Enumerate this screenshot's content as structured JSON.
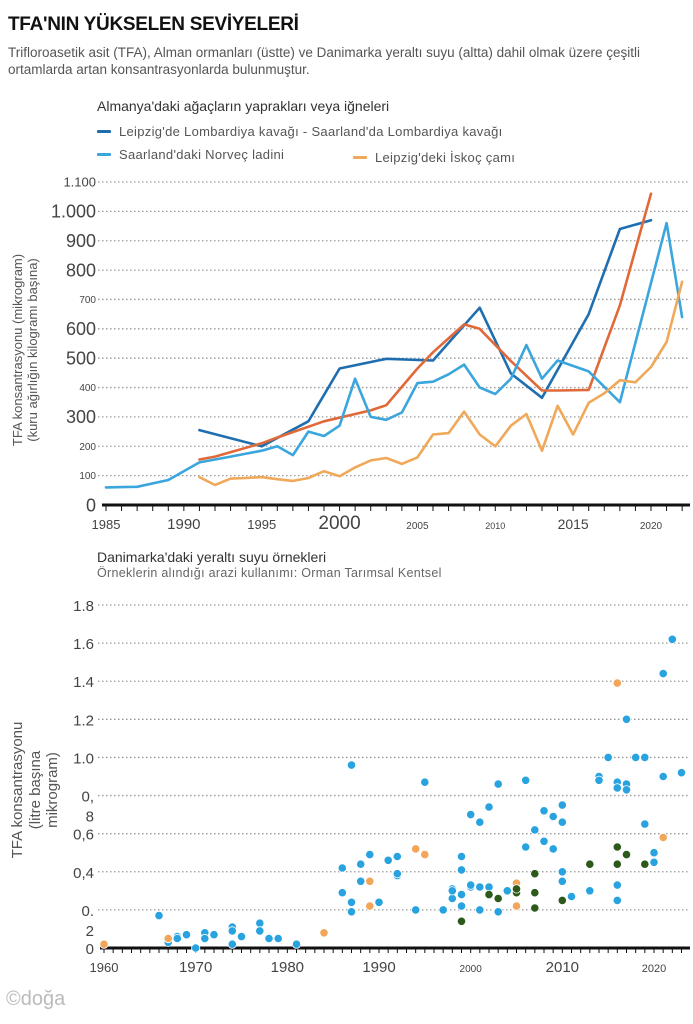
{
  "title": "TFA'NIN YÜKSELEN SEVİYELERİ",
  "subtitle": "Trifloroasetik asit (TFA), Alman ormanları (üstte) ve Danimarka yeraltı suyu (altta) dahil olmak üzere çeşitli ortamlarda artan konsantrasyonlarda bulunmuştur.",
  "footer": "©doğa",
  "colors": {
    "dark_blue": "#1f6fb0",
    "light_blue": "#3aa6dd",
    "orange_red": "#e0693a",
    "light_orange": "#f0a95a",
    "dot_blue": "#29a3e0",
    "dot_orange": "#f2a65a",
    "dot_green": "#2d5a1b"
  },
  "chart_data": [
    {
      "type": "line",
      "title": "Almanya'daki ağaçların yaprakları veya iğneleri",
      "xlabel": "",
      "ylabel": "TFA konsantrasyonu (mikrogram) (kuru ağırlığın kilogramı başına)",
      "xlim": [
        1985,
        2022.5
      ],
      "ylim": [
        0,
        1100
      ],
      "grid": true,
      "legend_position": "top-left",
      "x_ticks": [
        "1985",
        "1990",
        "1995",
        "2000",
        "2005",
        "2010",
        "2015",
        "2020"
      ],
      "y_ticks": [
        "0",
        "100",
        "200",
        "300",
        "400",
        "500",
        "600",
        "700",
        "800",
        "900",
        "1.000",
        "1.100"
      ],
      "legend": [
        {
          "label": "Leipzig'de Lombardiya kavağı - Saarland'da Lombardiya kavağı",
          "color_key": "dark_blue"
        },
        {
          "label": "Saarland'daki Norveç ladini",
          "color_key": "light_blue"
        },
        {
          "label": "Leipzig'deki İskoç çamı",
          "color_key": "light_orange"
        }
      ],
      "series": [
        {
          "name": "Leipzig'de Lombardiya kavağı",
          "color_key": "dark_blue",
          "points": [
            [
              1991,
              255
            ],
            [
              1995,
              200
            ],
            [
              1998,
              285
            ],
            [
              2000,
              465
            ],
            [
              2003,
              498
            ],
            [
              2006,
              492
            ],
            [
              2009,
              672
            ],
            [
              2011,
              448
            ],
            [
              2013,
              365
            ],
            [
              2016,
              650
            ],
            [
              2018,
              940
            ],
            [
              2020,
              970
            ]
          ]
        },
        {
          "name": "Saarland'da Lombardiya kavağı",
          "color_key": "orange_red",
          "points": [
            [
              1991,
              155
            ],
            [
              1992,
              165
            ],
            [
              1995,
              210
            ],
            [
              1996,
              230
            ],
            [
              1999,
              285
            ],
            [
              2002,
              322
            ],
            [
              2003,
              340
            ],
            [
              2005,
              465
            ],
            [
              2006,
              520
            ],
            [
              2008,
              615
            ],
            [
              2009,
              600
            ],
            [
              2011,
              490
            ],
            [
              2013,
              390
            ],
            [
              2014,
              390
            ],
            [
              2016,
              392
            ],
            [
              2018,
              680
            ],
            [
              2020,
              1060
            ]
          ]
        },
        {
          "name": "Saarland'daki Norveç ladini",
          "color_key": "light_blue",
          "points": [
            [
              1985,
              60
            ],
            [
              1987,
              62
            ],
            [
              1989,
              85
            ],
            [
              1991,
              145
            ],
            [
              1993,
              165
            ],
            [
              1995,
              185
            ],
            [
              1996,
              200
            ],
            [
              1997,
              170
            ],
            [
              1998,
              250
            ],
            [
              1999,
              235
            ],
            [
              2000,
              270
            ],
            [
              2001,
              430
            ],
            [
              2002,
              300
            ],
            [
              2003,
              290
            ],
            [
              2004,
              315
            ],
            [
              2005,
              415
            ],
            [
              2006,
              420
            ],
            [
              2007,
              445
            ],
            [
              2008,
              478
            ],
            [
              2009,
              400
            ],
            [
              2010,
              378
            ],
            [
              2011,
              430
            ],
            [
              2012,
              545
            ],
            [
              2013,
              430
            ],
            [
              2014,
              492
            ],
            [
              2016,
              455
            ],
            [
              2018,
              350
            ],
            [
              2021,
              960
            ],
            [
              2022,
              640
            ]
          ]
        },
        {
          "name": "Leipzig'deki İskoç çamı",
          "color_key": "light_orange",
          "points": [
            [
              1991,
              95
            ],
            [
              1992,
              68
            ],
            [
              1993,
              90
            ],
            [
              1994,
              92
            ],
            [
              1995,
              95
            ],
            [
              1996,
              88
            ],
            [
              1997,
              82
            ],
            [
              1998,
              92
            ],
            [
              1999,
              115
            ],
            [
              2000,
              98
            ],
            [
              2001,
              128
            ],
            [
              2002,
              152
            ],
            [
              2003,
              160
            ],
            [
              2004,
              140
            ],
            [
              2005,
              162
            ],
            [
              2006,
              240
            ],
            [
              2007,
              245
            ],
            [
              2008,
              318
            ],
            [
              2009,
              240
            ],
            [
              2010,
              200
            ],
            [
              2011,
              270
            ],
            [
              2012,
              310
            ],
            [
              2013,
              185
            ],
            [
              2014,
              338
            ],
            [
              2015,
              240
            ],
            [
              2016,
              348
            ],
            [
              2017,
              380
            ],
            [
              2018,
              425
            ],
            [
              2019,
              418
            ],
            [
              2020,
              470
            ],
            [
              2021,
              555
            ],
            [
              2022,
              760
            ]
          ]
        }
      ]
    },
    {
      "type": "scatter",
      "title": "Danimarka'daki yeraltı suyu örnekleri",
      "subtitle": "Örneklerin alındığı arazi kullanımı: Orman Tarımsal Kentsel",
      "xlabel": "",
      "ylabel": "TFA konsantrasyonu (litre başına mikrogram)",
      "xlim": [
        1960,
        2023.5
      ],
      "ylim": [
        0,
        1.8
      ],
      "grid": true,
      "x_ticks": [
        "1960",
        "1970",
        "1980",
        "1990",
        "2000",
        "2010",
        "2020"
      ],
      "y_ticks": [
        "0",
        "0.\n2",
        "0,4",
        "0,6",
        "0,\n8",
        "1.0",
        "1.2",
        "1.4",
        "1.6",
        "1.8"
      ],
      "categories": [
        {
          "name": "Orman",
          "color_key": "dot_green"
        },
        {
          "name": "Tarımsal",
          "color_key": "dot_blue"
        },
        {
          "name": "Kentsel",
          "color_key": "dot_orange"
        }
      ],
      "series": [
        {
          "name": "Tarımsal",
          "color_key": "dot_blue",
          "points": [
            [
              1966,
              0.17
            ],
            [
              1967,
              0.03
            ],
            [
              1968,
              0.06
            ],
            [
              1968,
              0.05
            ],
            [
              1969,
              0.07
            ],
            [
              1970,
              0.0
            ],
            [
              1971,
              0.08
            ],
            [
              1971,
              0.05
            ],
            [
              1972,
              0.07
            ],
            [
              1974,
              0.11
            ],
            [
              1974,
              0.09
            ],
            [
              1974,
              0.02
            ],
            [
              1975,
              0.06
            ],
            [
              1977,
              0.13
            ],
            [
              1977,
              0.09
            ],
            [
              1978,
              0.05
            ],
            [
              1979,
              0.05
            ],
            [
              1981,
              0.02
            ],
            [
              1986,
              0.42
            ],
            [
              1986,
              0.29
            ],
            [
              1987,
              0.96
            ],
            [
              1987,
              0.24
            ],
            [
              1987,
              0.19
            ],
            [
              1988,
              0.44
            ],
            [
              1988,
              0.35
            ],
            [
              1989,
              0.49
            ],
            [
              1990,
              0.24
            ],
            [
              1991,
              0.46
            ],
            [
              1992,
              0.48
            ],
            [
              1992,
              0.38
            ],
            [
              1992,
              0.39
            ],
            [
              1994,
              0.2
            ],
            [
              1995,
              0.87
            ],
            [
              1997,
              0.2
            ],
            [
              1998,
              0.26
            ],
            [
              1998,
              0.31
            ],
            [
              1998,
              0.3
            ],
            [
              1999,
              0.41
            ],
            [
              1999,
              0.48
            ],
            [
              1999,
              0.28
            ],
            [
              1999,
              0.22
            ],
            [
              2000,
              0.32
            ],
            [
              2000,
              0.33
            ],
            [
              2000,
              0.7
            ],
            [
              2001,
              0.32
            ],
            [
              2001,
              0.2
            ],
            [
              2001,
              0.66
            ],
            [
              2002,
              0.32
            ],
            [
              2002,
              0.74
            ],
            [
              2003,
              0.86
            ],
            [
              2003,
              0.19
            ],
            [
              2004,
              0.3
            ],
            [
              2006,
              0.53
            ],
            [
              2006,
              0.88
            ],
            [
              2007,
              0.62
            ],
            [
              2008,
              0.72
            ],
            [
              2008,
              0.56
            ],
            [
              2009,
              0.69
            ],
            [
              2009,
              0.52
            ],
            [
              2010,
              0.75
            ],
            [
              2010,
              0.4
            ],
            [
              2010,
              0.35
            ],
            [
              2010,
              0.66
            ],
            [
              2011,
              0.27
            ],
            [
              2013,
              0.3
            ],
            [
              2014,
              0.9
            ],
            [
              2014,
              0.88
            ],
            [
              2015,
              1.0
            ],
            [
              2016,
              0.87
            ],
            [
              2016,
              0.84
            ],
            [
              2016,
              0.33
            ],
            [
              2016,
              0.25
            ],
            [
              2017,
              1.2
            ],
            [
              2017,
              0.86
            ],
            [
              2017,
              0.83
            ],
            [
              2018,
              1.0
            ],
            [
              2019,
              1.0
            ],
            [
              2019,
              0.65
            ],
            [
              2020,
              0.45
            ],
            [
              2020,
              0.5
            ],
            [
              2021,
              1.44
            ],
            [
              2021,
              0.9
            ],
            [
              2022,
              1.62
            ],
            [
              2023,
              0.92
            ]
          ]
        },
        {
          "name": "Kentsel",
          "color_key": "dot_orange",
          "points": [
            [
              1960,
              0.02
            ],
            [
              1967,
              0.05
            ],
            [
              1984,
              0.08
            ],
            [
              1989,
              0.35
            ],
            [
              1989,
              0.22
            ],
            [
              1994,
              0.52
            ],
            [
              1995,
              0.49
            ],
            [
              2005,
              0.34
            ],
            [
              2005,
              0.22
            ],
            [
              2016,
              1.39
            ],
            [
              2021,
              0.58
            ]
          ]
        },
        {
          "name": "Orman",
          "color_key": "dot_green",
          "points": [
            [
              1999,
              0.14
            ],
            [
              2002,
              0.28
            ],
            [
              2003,
              0.26
            ],
            [
              2005,
              0.29
            ],
            [
              2005,
              0.31
            ],
            [
              2007,
              0.39
            ],
            [
              2007,
              0.29
            ],
            [
              2007,
              0.21
            ],
            [
              2010,
              0.25
            ],
            [
              2013,
              0.44
            ],
            [
              2016,
              0.53
            ],
            [
              2016,
              0.44
            ],
            [
              2017,
              0.49
            ],
            [
              2019,
              0.44
            ]
          ]
        }
      ]
    }
  ]
}
